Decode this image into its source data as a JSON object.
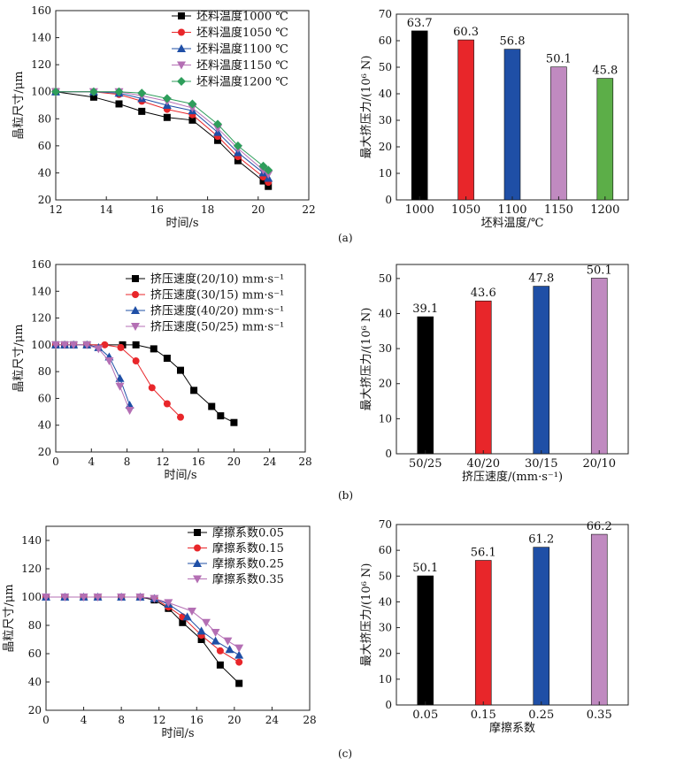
{
  "panel_labels": [
    "(a)",
    "(b)",
    "(c)"
  ],
  "chart_data": [
    {
      "id": "a-line",
      "type": "line",
      "xlabel": "时间/s",
      "ylabel": "晶粒尺寸/μm",
      "xlim": [
        12,
        22
      ],
      "ylim": [
        20,
        160
      ],
      "xticks": [
        12,
        14,
        16,
        18,
        20,
        22
      ],
      "yticks": [
        20,
        40,
        60,
        80,
        100,
        120,
        140,
        160
      ],
      "series": [
        {
          "name": "坯料温度1000 ℃",
          "color": "#000000",
          "marker": "square",
          "x": [
            12,
            13.5,
            14.5,
            15.4,
            16.4,
            17.4,
            18.4,
            19.2,
            20.2,
            20.4
          ],
          "y": [
            100,
            96,
            91,
            85.5,
            81,
            79,
            64,
            49,
            34,
            30
          ]
        },
        {
          "name": "坯料温度1050 ℃",
          "color": "#e8262a",
          "marker": "circle",
          "x": [
            12,
            13.5,
            14.5,
            15.4,
            16.4,
            17.4,
            18.4,
            19.2,
            20.2,
            20.4
          ],
          "y": [
            100,
            100,
            98,
            93,
            87,
            83,
            67,
            52,
            37,
            33
          ]
        },
        {
          "name": "坯料温度1100 ℃",
          "color": "#1f4fa6",
          "marker": "triangle-up",
          "x": [
            12,
            13.5,
            14.5,
            15.4,
            16.4,
            17.4,
            18.4,
            19.2,
            20.2,
            20.4
          ],
          "y": [
            100,
            100,
            99,
            95,
            90,
            86,
            70,
            55,
            40,
            36
          ]
        },
        {
          "name": "坯料温度1150 ℃",
          "color": "#b46fb4",
          "marker": "triangle-down",
          "x": [
            12,
            13.5,
            14.5,
            15.4,
            16.4,
            17.4,
            18.4,
            19.2,
            20.2,
            20.4
          ],
          "y": [
            100,
            100,
            100,
            97,
            93,
            88,
            73,
            58,
            42,
            39
          ]
        },
        {
          "name": "坯料温度1200 ℃",
          "color": "#2e9e5b",
          "marker": "diamond",
          "x": [
            12,
            13.5,
            14.5,
            15.4,
            16.4,
            17.4,
            18.4,
            19.2,
            20.2,
            20.4
          ],
          "y": [
            100,
            100,
            100,
            99,
            95,
            91,
            76,
            60,
            45,
            42
          ]
        }
      ]
    },
    {
      "id": "a-bar",
      "type": "bar",
      "xlabel": "坯料温度/℃",
      "ylabel": "最大挤压力/(10⁶ N)",
      "categories": [
        "1000",
        "1050",
        "1100",
        "1150",
        "1200"
      ],
      "values": [
        63.7,
        60.3,
        56.8,
        50.1,
        45.8
      ],
      "value_labels": [
        "63.7",
        "60.3",
        "56.8",
        "50.1",
        "45.8"
      ],
      "colors": [
        "#000000",
        "#e8262a",
        "#1f4fa6",
        "#c08ac0",
        "#5cae48"
      ],
      "ylim": [
        0,
        70
      ],
      "yticks": [
        0,
        10,
        20,
        30,
        40,
        50,
        60,
        70
      ]
    },
    {
      "id": "b-line",
      "type": "line",
      "xlabel": "时间/s",
      "ylabel": "晶粒尺寸/μm",
      "xlim": [
        0,
        28
      ],
      "ylim": [
        20,
        160
      ],
      "xticks": [
        0,
        4,
        8,
        12,
        16,
        20,
        24,
        28
      ],
      "yticks": [
        20,
        40,
        60,
        80,
        100,
        120,
        140,
        160
      ],
      "series": [
        {
          "name": "挤压速度(20/10) mm·s⁻¹",
          "color": "#000000",
          "marker": "square",
          "x": [
            0,
            1,
            2,
            3.5,
            7.5,
            9,
            11,
            12.5,
            14,
            15.5,
            17.5,
            18.5,
            20
          ],
          "y": [
            100,
            100,
            100,
            100,
            100,
            100,
            97,
            90,
            81,
            66,
            54,
            47,
            42
          ]
        },
        {
          "name": "挤压速度(30/15) mm·s⁻¹",
          "color": "#e8262a",
          "marker": "circle",
          "x": [
            0,
            1,
            2,
            3.5,
            5.5,
            7.3,
            9,
            10.8,
            12.5,
            14
          ],
          "y": [
            100,
            100,
            100,
            100,
            100,
            98,
            88,
            68,
            56,
            46
          ]
        },
        {
          "name": "挤压速度(40/20) mm·s⁻¹",
          "color": "#1f4fa6",
          "marker": "triangle-up",
          "x": [
            0,
            1,
            2,
            3.5,
            4.8,
            6,
            7.2,
            8.3
          ],
          "y": [
            100,
            100,
            100,
            100,
            98,
            91,
            75,
            55
          ]
        },
        {
          "name": "挤压速度(50/25) mm·s⁻¹",
          "color": "#b46fb4",
          "marker": "triangle-down",
          "x": [
            0,
            1,
            2,
            3.5,
            4.8,
            6,
            7.2,
            8.3
          ],
          "y": [
            100,
            100,
            100,
            100,
            97,
            88,
            69,
            51
          ]
        }
      ]
    },
    {
      "id": "b-bar",
      "type": "bar",
      "xlabel": "挤压速度/(mm·s⁻¹)",
      "ylabel": "最大挤压力/(10⁶ N)",
      "categories": [
        "50/25",
        "40/20",
        "30/15",
        "20/10"
      ],
      "values": [
        39.1,
        43.6,
        47.8,
        50.1
      ],
      "value_labels": [
        "39.1",
        "43.6",
        "47.8",
        "50.1"
      ],
      "colors": [
        "#000000",
        "#e8262a",
        "#1f4fa6",
        "#c08ac0"
      ],
      "ylim": [
        0,
        54
      ],
      "yticks": [
        0,
        10,
        20,
        30,
        40,
        50
      ]
    },
    {
      "id": "c-line",
      "type": "line",
      "xlabel": "时间/s",
      "ylabel": "晶粒尺寸/μm",
      "xlim": [
        0,
        28
      ],
      "ylim": [
        20,
        150
      ],
      "xticks": [
        0,
        4,
        8,
        12,
        16,
        20,
        24,
        28
      ],
      "yticks": [
        20,
        40,
        60,
        80,
        100,
        120,
        140
      ],
      "series": [
        {
          "name": "摩擦系数0.05",
          "color": "#000000",
          "marker": "square",
          "x": [
            0,
            2,
            4,
            5.5,
            8,
            10,
            11.5,
            13,
            14.5,
            16.5,
            18.5,
            20.5
          ],
          "y": [
            100,
            100,
            100,
            100,
            100,
            100,
            98,
            92,
            82,
            70,
            52,
            39
          ]
        },
        {
          "name": "摩擦系数0.15",
          "color": "#e8262a",
          "marker": "circle",
          "x": [
            0,
            2,
            4,
            5.5,
            8,
            10,
            11.5,
            13,
            14.5,
            16.5,
            18.5,
            20.5
          ],
          "y": [
            100,
            100,
            100,
            100,
            100,
            100,
            99,
            93,
            86,
            73,
            62,
            54
          ]
        },
        {
          "name": "摩擦系数0.25",
          "color": "#1f4fa6",
          "marker": "triangle-up",
          "x": [
            0,
            2,
            4,
            5.5,
            8,
            10,
            11.5,
            13,
            15,
            16.5,
            18,
            19.5,
            20.5
          ],
          "y": [
            100,
            100,
            100,
            100,
            100,
            100,
            99,
            95,
            86,
            76,
            69,
            63,
            59
          ]
        },
        {
          "name": "摩擦系数0.35",
          "color": "#b46fb4",
          "marker": "triangle-down",
          "x": [
            0,
            2,
            4,
            5.5,
            8,
            10,
            11.5,
            13,
            15.5,
            17,
            18,
            19.3,
            20.5
          ],
          "y": [
            100,
            100,
            100,
            100,
            100,
            100,
            99,
            96,
            90,
            82,
            75,
            69,
            64
          ]
        }
      ]
    },
    {
      "id": "c-bar",
      "type": "bar",
      "xlabel": "摩擦系数",
      "ylabel": "最大挤压力/(10⁶ N)",
      "categories": [
        "0.05",
        "0.15",
        "0.25",
        "0.35"
      ],
      "values": [
        50.1,
        56.1,
        61.2,
        66.2
      ],
      "value_labels": [
        "50.1",
        "56.1",
        "61.2",
        "66.2"
      ],
      "colors": [
        "#000000",
        "#e8262a",
        "#1f4fa6",
        "#c08ac0"
      ],
      "ylim": [
        0,
        70
      ],
      "yticks": [
        0,
        10,
        20,
        30,
        40,
        50,
        60,
        70
      ]
    }
  ]
}
